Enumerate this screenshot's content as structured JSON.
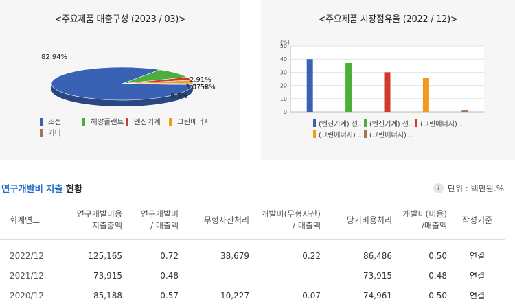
{
  "sales_panel": {
    "title": "<주요제품 매출구성 (2023 / 03)>"
  },
  "share_panel": {
    "title": "<주요제품 시장점유율 (2022 / 12)>"
  },
  "chart_data": [
    {
      "type": "pie",
      "title": "<주요제품 매출구성 (2023 / 03)>",
      "labels": [
        "조선",
        "해양플랜트",
        "엔진기계",
        "그린에너지",
        "기타"
      ],
      "values": [
        82.94,
        9.5,
        3.07,
        2.91,
        1.58
      ],
      "data_labels": [
        "82.94%",
        "9.5%",
        "3.07%",
        "2.91%",
        "1.58%"
      ],
      "colors": [
        "#3a62b4",
        "#4caf3a",
        "#d03a2a",
        "#f39a1e",
        "#a37552"
      ],
      "legend_position": "bottom"
    },
    {
      "type": "bar",
      "title": "<주요제품 시장점유율 (2022 / 12)>",
      "ylabel": "(%)",
      "ylim": [
        0,
        50
      ],
      "yticks": [
        "0",
        "10",
        "20",
        "30",
        "40",
        "50"
      ],
      "grid": true,
      "categories": [
        "(엔진기계) 선..",
        "(엔진기계) 선..",
        "(그린에너지) ..",
        "(그린에너지) ..",
        "(그린에너지) .."
      ],
      "values": [
        40,
        37,
        30,
        26,
        1
      ],
      "colors": [
        "#3a62b4",
        "#4caf3a",
        "#d03a2a",
        "#f39a1e",
        "#a37552"
      ],
      "legend_position": "bottom"
    }
  ],
  "rnd": {
    "title_accent": "연구개발비 지출",
    "title_rest": " 현황",
    "info_icon": "i",
    "unit": "단위 : 백만원.%",
    "headers": {
      "year": "회계연도",
      "total_1": "연구개발비용",
      "total_2": "지출총액",
      "ratio_1": "연구개발비",
      "ratio_2": "/ 매출액",
      "intangible": "무형자산처리",
      "dev_ratio_1": "개발비(무형자산)",
      "dev_ratio_2": "/ 매출액",
      "expense": "당기비용처리",
      "dev_exp_1": "개발비(비용)",
      "dev_exp_2": "/매출액",
      "basis": "작성기준"
    },
    "rows": [
      {
        "year": "2022/12",
        "total": "125,165",
        "ratio": "0.72",
        "intangible": "38,679",
        "dev_ratio": "0.22",
        "expense": "86,486",
        "dev_exp": "0.50",
        "basis": "연결"
      },
      {
        "year": "2021/12",
        "total": "73,915",
        "ratio": "0.48",
        "intangible": "",
        "dev_ratio": "",
        "expense": "73,915",
        "dev_exp": "0.48",
        "basis": "연결"
      },
      {
        "year": "2020/12",
        "total": "85,188",
        "ratio": "0.57",
        "intangible": "10,227",
        "dev_ratio": "0.07",
        "expense": "74,961",
        "dev_exp": "0.50",
        "basis": "연결"
      }
    ]
  }
}
